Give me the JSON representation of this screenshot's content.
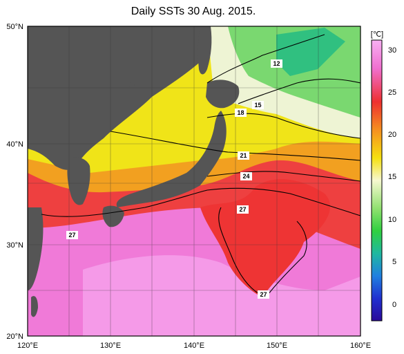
{
  "title": "Daily SSTs 30 Aug. 2015.",
  "map": {
    "lon_ticks": [
      "120°E",
      "130°E",
      "140°E",
      "150°E",
      "160°E"
    ],
    "lat_ticks": [
      "50°N",
      "40°N",
      "30°N",
      "20°N"
    ],
    "lon_range": [
      120,
      160
    ],
    "lat_range": [
      20,
      50
    ]
  },
  "colorbar": {
    "unit": "[℃]",
    "ticks": [
      "30",
      "25",
      "20",
      "15",
      "10",
      "5",
      "0"
    ],
    "colors": [
      "#f4a6f0",
      "#ee3a3a",
      "#f5a216",
      "#f2f20a",
      "#eef8d8",
      "#3fd83f",
      "#20c090",
      "#2040e0",
      "#2a0a9a"
    ]
  },
  "contour_labels": [
    "12",
    "15",
    "18",
    "21",
    "24",
    "27",
    "27",
    "27"
  ],
  "colors": {
    "land": "#555555",
    "warm_pink": "#f08ae0",
    "red": "#f03a3a",
    "orange": "#f0a020",
    "yellow": "#f2e810",
    "pale": "#f0f4d8",
    "green": "#60d070",
    "teal": "#30b890"
  }
}
